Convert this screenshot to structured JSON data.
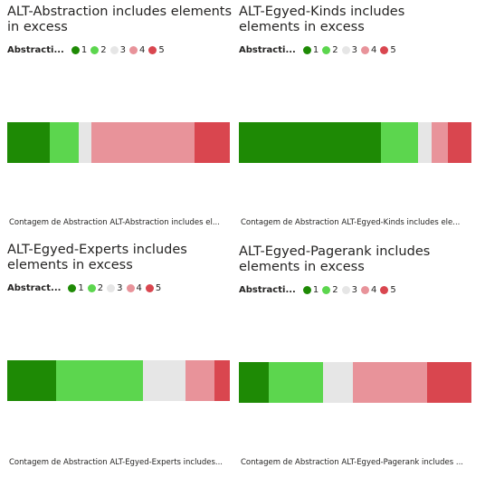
{
  "colors": {
    "1": "#1e8a05",
    "2": "#5cd64e",
    "3": "#e6e6e6",
    "4": "#e8939a",
    "5": "#d9464f"
  },
  "legend_title_short": "Abstracti...",
  "chart_data": [
    {
      "type": "bar",
      "stacked": "100%",
      "title": "ALT-Abstraction includes elements in excess",
      "legend_title": "Abstracti...",
      "legend": [
        "1",
        "2",
        "3",
        "4",
        "5"
      ],
      "categories": [
        "1",
        "2",
        "3",
        "4",
        "5"
      ],
      "values": [
        19,
        13,
        6,
        46,
        16
      ],
      "xlabel": "Contagem de Abstraction ALT-Abstraction includes el..."
    },
    {
      "type": "bar",
      "stacked": "100%",
      "title": "ALT-Egyed-Kinds includes elements in excess",
      "legend_title": "Abstracti...",
      "legend": [
        "1",
        "2",
        "3",
        "4",
        "5"
      ],
      "categories": [
        "1",
        "2",
        "3",
        "4",
        "5"
      ],
      "values": [
        61,
        16,
        6,
        7,
        10
      ],
      "xlabel": "Contagem de Abstraction ALT-Egyed-Kinds includes ele..."
    },
    {
      "type": "bar",
      "stacked": "100%",
      "title": "ALT-Egyed-Experts includes elements in excess",
      "legend_title": "Abstract...",
      "legend": [
        "1",
        "2",
        "3",
        "4",
        "5"
      ],
      "categories": [
        "1",
        "2",
        "3",
        "4",
        "5"
      ],
      "values": [
        22,
        39,
        19,
        13,
        7
      ],
      "xlabel": "Contagem de Abstraction ALT-Egyed-Experts includes..."
    },
    {
      "type": "bar",
      "stacked": "100%",
      "title": "ALT-Egyed-Pagerank includes elements in excess",
      "legend_title": "Abstracti...",
      "legend": [
        "1",
        "2",
        "3",
        "4",
        "5"
      ],
      "categories": [
        "1",
        "2",
        "3",
        "4",
        "5"
      ],
      "values": [
        13,
        23,
        13,
        32,
        19
      ],
      "xlabel": "Contagem de Abstraction ALT-Egyed-Pagerank includes ..."
    }
  ]
}
